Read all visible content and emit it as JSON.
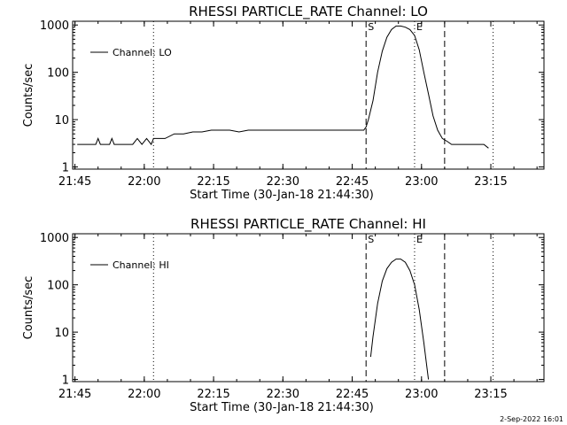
{
  "chart_data": [
    {
      "type": "line",
      "title": "RHESSI PARTICLE_RATE Channel: LO",
      "xlabel": "Start Time (30-Jan-18 21:44:30)",
      "ylabel": "Counts/sec",
      "x_unit": "minutes since 21:44:30",
      "xlim": [
        0,
        102
      ],
      "ylim": [
        0.9,
        1200
      ],
      "y_scale": "log",
      "x_tick_labels": [
        "21:45",
        "22:00",
        "22:15",
        "22:30",
        "22:45",
        "23:00",
        "23:15"
      ],
      "x_tick_values": [
        0.5,
        15.5,
        30.5,
        45.5,
        60.5,
        75.5,
        90.5
      ],
      "y_tick_labels": [
        "1",
        "10",
        "100",
        "1000"
      ],
      "y_tick_values": [
        1,
        10,
        100,
        1000
      ],
      "legend": {
        "position": "top-left",
        "entries": [
          "Channel: LO"
        ]
      },
      "markers": [
        {
          "label": "S",
          "x": 63.5,
          "style": "dashed"
        },
        {
          "label": "E",
          "x": 74.0,
          "style": "dotted"
        },
        {
          "label": "",
          "x": 80.5,
          "style": "dashed"
        },
        {
          "label": "",
          "x": 17.5,
          "style": "dotted"
        },
        {
          "label": "",
          "x": 91.0,
          "style": "dotted"
        }
      ],
      "series": [
        {
          "name": "Channel: LO",
          "x": [
            1,
            3,
            5,
            5.5,
            6,
            8,
            8.5,
            9,
            11,
            13,
            14,
            15,
            16,
            17,
            17.5,
            18,
            20,
            22,
            24,
            26,
            28,
            30,
            32,
            34,
            36,
            38,
            40,
            42,
            44,
            46,
            48,
            50,
            52,
            54,
            56,
            58,
            60,
            62,
            63,
            63.5,
            64,
            65,
            66,
            67,
            68,
            69,
            70,
            71,
            72,
            73,
            74,
            75,
            76,
            77,
            78,
            79,
            80,
            81,
            82,
            84,
            86,
            88,
            89,
            90
          ],
          "y": [
            3,
            3,
            3,
            4,
            3,
            3,
            4,
            3,
            3,
            3,
            4,
            3,
            4,
            3,
            4,
            4,
            4,
            5,
            5,
            5.5,
            5.5,
            6,
            6,
            6,
            5.5,
            6,
            6,
            6,
            6,
            6,
            6,
            6,
            6,
            6,
            6,
            6,
            6,
            6,
            6,
            7,
            10,
            25,
            100,
            280,
            550,
            800,
            950,
            950,
            900,
            800,
            600,
            300,
            100,
            35,
            12,
            6,
            4,
            3.5,
            3,
            3,
            3,
            3,
            3,
            2.5
          ]
        }
      ]
    },
    {
      "type": "line",
      "title": "RHESSI PARTICLE_RATE Channel: HI",
      "xlabel": "Start Time (30-Jan-18 21:44:30)",
      "ylabel": "Counts/sec",
      "x_unit": "minutes since 21:44:30",
      "xlim": [
        0,
        102
      ],
      "ylim": [
        0.9,
        1200
      ],
      "y_scale": "log",
      "x_tick_labels": [
        "21:45",
        "22:00",
        "22:15",
        "22:30",
        "22:45",
        "23:00",
        "23:15"
      ],
      "x_tick_values": [
        0.5,
        15.5,
        30.5,
        45.5,
        60.5,
        75.5,
        90.5
      ],
      "y_tick_labels": [
        "1",
        "10",
        "100",
        "1000"
      ],
      "y_tick_values": [
        1,
        10,
        100,
        1000
      ],
      "legend": {
        "position": "top-left",
        "entries": [
          "Channel: HI"
        ]
      },
      "markers": [
        {
          "label": "S",
          "x": 63.5,
          "style": "dashed"
        },
        {
          "label": "E",
          "x": 74.0,
          "style": "dotted"
        },
        {
          "label": "",
          "x": 80.5,
          "style": "dashed"
        },
        {
          "label": "",
          "x": 17.5,
          "style": "dotted"
        },
        {
          "label": "",
          "x": 91.0,
          "style": "dotted"
        }
      ],
      "series": [
        {
          "name": "Channel: HI",
          "x": [
            64.5,
            65,
            66,
            67,
            68,
            69,
            70,
            71,
            72,
            73,
            74,
            75,
            76,
            77
          ],
          "y": [
            3,
            8,
            40,
            120,
            220,
            300,
            350,
            350,
            300,
            200,
            100,
            30,
            6,
            1
          ]
        }
      ]
    }
  ],
  "timestamp": "2-Sep-2022 16:01"
}
